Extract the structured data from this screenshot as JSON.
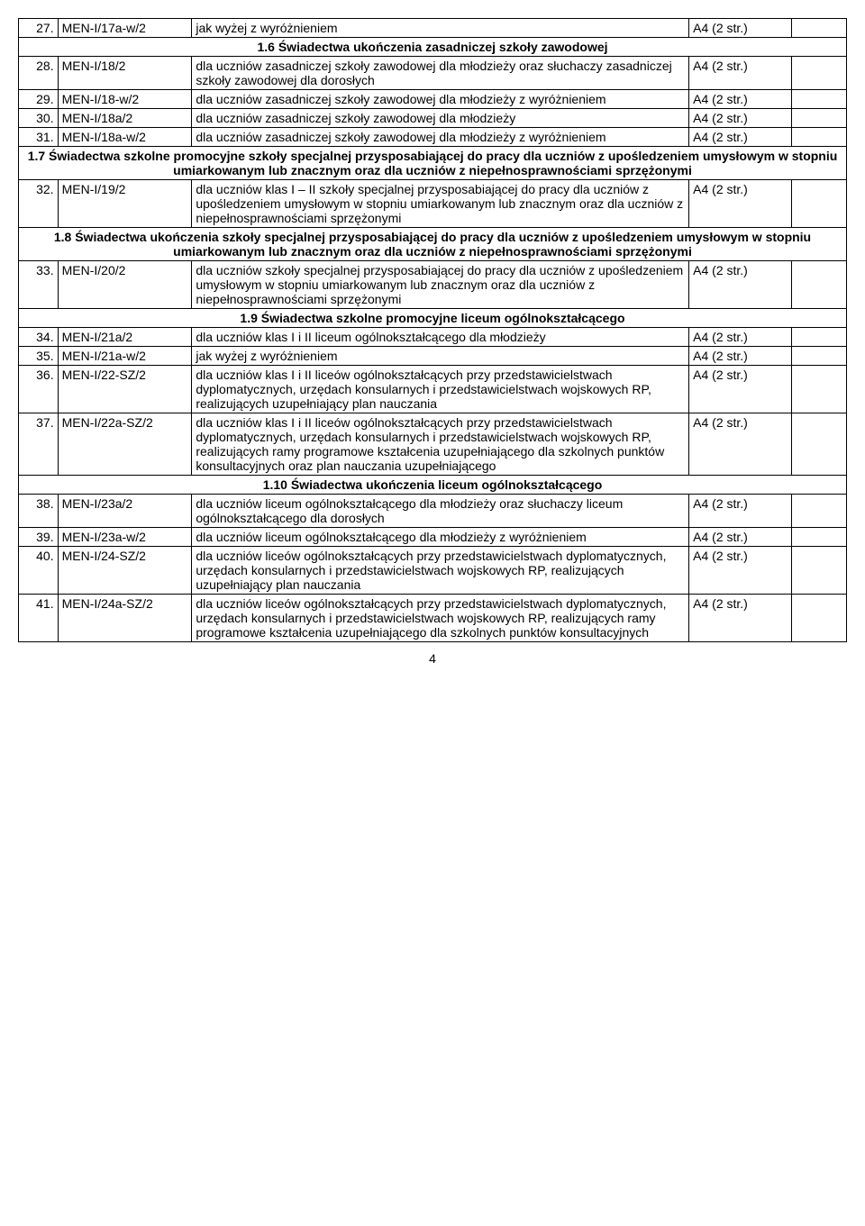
{
  "rows": [
    {
      "type": "data",
      "num": "27.",
      "code": "MEN-I/17a-w/2",
      "desc": "jak wyżej z wyróżnieniem",
      "fmt": "A4 (2 str.)"
    },
    {
      "type": "section",
      "text": "1.6 Świadectwa ukończenia zasadniczej szkoły zawodowej"
    },
    {
      "type": "data",
      "num": "28.",
      "code": "MEN-I/18/2",
      "desc": "dla uczniów zasadniczej szkoły zawodowej dla młodzieży oraz słuchaczy zasadniczej szkoły zawodowej dla dorosłych",
      "fmt": "A4 (2 str.)"
    },
    {
      "type": "data",
      "num": "29.",
      "code": "MEN-I/18-w/2",
      "desc": "dla uczniów zasadniczej szkoły zawodowej dla młodzieży z wyróżnieniem",
      "fmt": "A4 (2 str.)"
    },
    {
      "type": "data",
      "num": "30.",
      "code": "MEN-I/18a/2",
      "desc": "dla uczniów zasadniczej szkoły zawodowej dla młodzieży",
      "fmt": "A4 (2 str.)"
    },
    {
      "type": "data",
      "num": "31.",
      "code": "MEN-I/18a-w/2",
      "desc": "dla uczniów zasadniczej szkoły zawodowej dla młodzieży z wyróżnieniem",
      "fmt": "A4 (2 str.)"
    },
    {
      "type": "section",
      "text": "1.7 Świadectwa szkolne promocyjne szkoły specjalnej przysposabiającej do pracy dla uczniów z upośledzeniem umysłowym w stopniu umiarkowanym lub znacznym oraz dla uczniów z niepełnosprawnościami sprzężonymi"
    },
    {
      "type": "data",
      "num": "32.",
      "code": "MEN-I/19/2",
      "desc": "dla uczniów klas I – II szkoły specjalnej przysposabiającej do pracy dla uczniów z upośledzeniem umysłowym w stopniu umiarkowanym lub znacznym oraz dla uczniów z niepełnosprawnościami sprzężonymi",
      "fmt": "A4 (2 str.)"
    },
    {
      "type": "section",
      "text": "1.8 Świadectwa ukończenia szkoły specjalnej przysposabiającej do pracy dla uczniów z upośledzeniem umysłowym w stopniu umiarkowanym lub znacznym oraz dla uczniów z niepełnosprawnościami sprzężonymi"
    },
    {
      "type": "data",
      "num": "33.",
      "code": "MEN-I/20/2",
      "desc": "dla uczniów szkoły specjalnej przysposabiającej do pracy dla uczniów z upośledzeniem umysłowym w stopniu umiarkowanym lub znacznym oraz dla uczniów z niepełnosprawnościami sprzężonymi",
      "fmt": "A4 (2 str.)"
    },
    {
      "type": "section",
      "text": "1.9 Świadectwa szkolne promocyjne liceum ogólnokształcącego"
    },
    {
      "type": "data",
      "num": "34.",
      "code": "MEN-I/21a/2",
      "desc": "dla uczniów klas I i II liceum ogólnokształcącego dla młodzieży",
      "fmt": "A4 (2 str.)"
    },
    {
      "type": "data",
      "num": "35.",
      "code": "MEN-I/21a-w/2",
      "desc": "jak wyżej z wyróżnieniem",
      "fmt": "A4 (2 str.)"
    },
    {
      "type": "data",
      "num": "36.",
      "code": "MEN-I/22-SZ/2",
      "desc": "dla uczniów klas I i II liceów ogólnokształcących przy przedstawicielstwach dyplomatycznych, urzędach konsularnych i przedstawicielstwach wojskowych RP, realizujących uzupełniający plan nauczania",
      "fmt": "A4 (2 str.)"
    },
    {
      "type": "data",
      "num": "37.",
      "code": "MEN-I/22a-SZ/2",
      "desc": "dla uczniów klas I i II liceów ogólnokształcących przy przedstawicielstwach dyplomatycznych, urzędach konsularnych i przedstawicielstwach wojskowych RP, realizujących ramy programowe kształcenia uzupełniającego dla szkolnych punktów konsultacyjnych oraz plan nauczania uzupełniającego",
      "fmt": "A4 (2 str.)"
    },
    {
      "type": "section",
      "text": "1.10 Świadectwa ukończenia liceum ogólnokształcącego"
    },
    {
      "type": "data",
      "num": "38.",
      "code": "MEN-I/23a/2",
      "desc": "dla uczniów liceum ogólnokształcącego dla młodzieży oraz słuchaczy liceum ogólnokształcącego dla dorosłych",
      "fmt": "A4 (2 str.)"
    },
    {
      "type": "data",
      "num": "39.",
      "code": "MEN-I/23a-w/2",
      "desc": "dla uczniów liceum ogólnokształcącego dla młodzieży z wyróżnieniem",
      "fmt": "A4 (2 str.)"
    },
    {
      "type": "data",
      "num": "40.",
      "code": "MEN-I/24-SZ/2",
      "desc": "dla uczniów liceów ogólnokształcących przy przedstawicielstwach dyplomatycznych, urzędach konsularnych i przedstawicielstwach wojskowych RP, realizujących uzupełniający plan nauczania",
      "fmt": "A4 (2 str.)"
    },
    {
      "type": "data",
      "num": "41.",
      "code": "MEN-I/24a-SZ/2",
      "desc": "dla uczniów liceów ogólnokształcących przy przedstawicielstwach dyplomatycznych, urzędach konsularnych i przedstawicielstwach wojskowych RP, realizujących ramy programowe kształcenia uzupełniającego dla szkolnych punktów konsultacyjnych",
      "fmt": "A4 (2 str.)"
    }
  ],
  "pageNumber": "4"
}
